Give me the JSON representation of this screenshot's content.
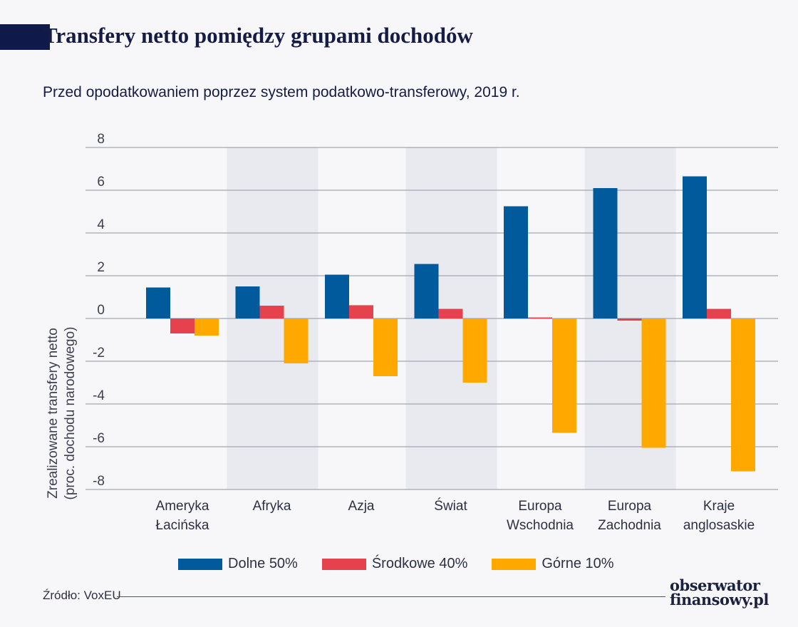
{
  "header": {
    "title": "Transfery netto pomiędzy grupami dochodów",
    "subtitle": "Przed opodatkowaniem poprzez system podatkowo-transferowy, 2019 r."
  },
  "chart_data": {
    "type": "bar",
    "ylabel_line1": "Zrealizowane transfery netto",
    "ylabel_line2": "(proc. dochodu narodowego)",
    "ylim": [
      -8,
      8
    ],
    "yticks": [
      "8",
      "6",
      "4",
      "2",
      "0",
      "-2",
      "-4",
      "-6",
      "-8"
    ],
    "ytick_values": [
      8,
      6,
      4,
      2,
      0,
      -2,
      -4,
      -6,
      -8
    ],
    "grid": true,
    "legend_position": "bottom",
    "categories": [
      [
        "Ameryka",
        "Łacińska"
      ],
      [
        "Afryka"
      ],
      [
        "Azja"
      ],
      [
        "Świat"
      ],
      [
        "Europa",
        "Wschodnia"
      ],
      [
        "Europa",
        "Zachodnia"
      ],
      [
        "Kraje",
        "anglosaskie"
      ]
    ],
    "shaded_categories": [
      1,
      3,
      5
    ],
    "series": [
      {
        "name": "Dolne 50%",
        "color": "#005a9c",
        "values": [
          1.45,
          1.5,
          2.05,
          2.55,
          5.25,
          6.1,
          6.65
        ]
      },
      {
        "name": "Środkowe 40%",
        "color": "#e5424d",
        "values": [
          -0.7,
          0.6,
          0.62,
          0.45,
          0.05,
          -0.1,
          0.45
        ]
      },
      {
        "name": "Górne 10%",
        "color": "#ffa800",
        "values": [
          -0.8,
          -2.1,
          -2.7,
          -3.0,
          -5.35,
          -6.05,
          -7.15
        ]
      }
    ]
  },
  "legend": {
    "items": [
      {
        "label": "Dolne 50%",
        "color": "#005a9c"
      },
      {
        "label": "Środkowe 40%",
        "color": "#e5424d"
      },
      {
        "label": "Górne 10%",
        "color": "#ffa800"
      }
    ]
  },
  "footer": {
    "source": "Źródło: VoxEU",
    "logo_line1": "obserwator",
    "logo_line2": "finansowy.pl"
  }
}
